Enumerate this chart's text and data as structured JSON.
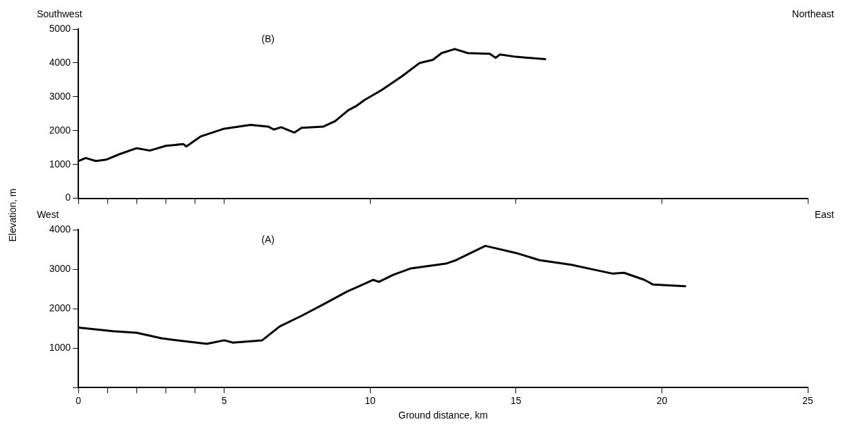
{
  "chart_data": [
    {
      "type": "line",
      "ylabel": "Elevation, m",
      "annotations": [
        "Southwest",
        "Northeast",
        "(B)"
      ],
      "tick_labels": "y",
      "legend": false,
      "grid": false,
      "marker": "none",
      "line_style": "solid",
      "xlim": [
        0,
        25
      ],
      "xticks": [
        0,
        {
          "value": 1,
          "label": null
        },
        {
          "value": 2,
          "label": null
        },
        {
          "value": 3,
          "label": null
        },
        {
          "value": 4,
          "label": null
        },
        5,
        10,
        15,
        20,
        25
      ],
      "ylim": [
        0,
        5000
      ],
      "yticks": [
        0,
        1000,
        2000,
        3000,
        4000,
        5000
      ],
      "series": [
        {
          "color": "#000000",
          "x": [
            0,
            0.25,
            0.6,
            0.95,
            1.4,
            2.0,
            2.45,
            3.0,
            3.6,
            3.7,
            4.2,
            4.97,
            5.9,
            6.5,
            6.7,
            6.95,
            7.4,
            7.65,
            8.4,
            8.8,
            9.25,
            9.55,
            9.8,
            10.4,
            11.1,
            11.7,
            12.15,
            12.45,
            12.9,
            13.35,
            14.1,
            14.3,
            14.45,
            15.0,
            16.0
          ],
          "values": [
            1100,
            1190,
            1100,
            1140,
            1300,
            1480,
            1410,
            1550,
            1600,
            1530,
            1830,
            2050,
            2170,
            2120,
            2030,
            2100,
            1940,
            2080,
            2120,
            2280,
            2600,
            2740,
            2900,
            3200,
            3610,
            4000,
            4090,
            4290,
            4410,
            4290,
            4270,
            4150,
            4250,
            4180,
            4110
          ]
        }
      ]
    },
    {
      "type": "line",
      "xlabel": "Ground distance, km",
      "annotations": [
        "West",
        "East",
        "(A)"
      ],
      "legend": false,
      "grid": false,
      "marker": "none",
      "line_style": "solid",
      "xlim": [
        0,
        25
      ],
      "xticks": [
        0,
        {
          "value": 1,
          "label": null
        },
        {
          "value": 2,
          "label": null
        },
        {
          "value": 3,
          "label": null
        },
        {
          "value": 4,
          "label": null
        },
        5,
        10,
        15,
        20,
        25
      ],
      "ylim": [
        0,
        4000
      ],
      "yticks": [
        {
          "value": 0,
          "label": null
        },
        1000,
        2000,
        3000,
        4000
      ],
      "series": [
        {
          "color": "#000000",
          "x": [
            0,
            1.19,
            2.0,
            2.85,
            3.6,
            4.4,
            5.0,
            5.3,
            6.3,
            6.9,
            7.65,
            8.4,
            9.2,
            10.1,
            10.3,
            10.8,
            11.4,
            12.6,
            12.95,
            13.95,
            15.0,
            15.8,
            16.9,
            17.6,
            18.3,
            18.7,
            19.4,
            19.7,
            20.8
          ],
          "values": [
            1520,
            1430,
            1390,
            1250,
            1180,
            1110,
            1200,
            1140,
            1200,
            1550,
            1820,
            2110,
            2430,
            2730,
            2680,
            2860,
            3020,
            3140,
            3230,
            3590,
            3410,
            3230,
            3110,
            3000,
            2890,
            2910,
            2730,
            2610,
            2570
          ]
        }
      ]
    }
  ]
}
